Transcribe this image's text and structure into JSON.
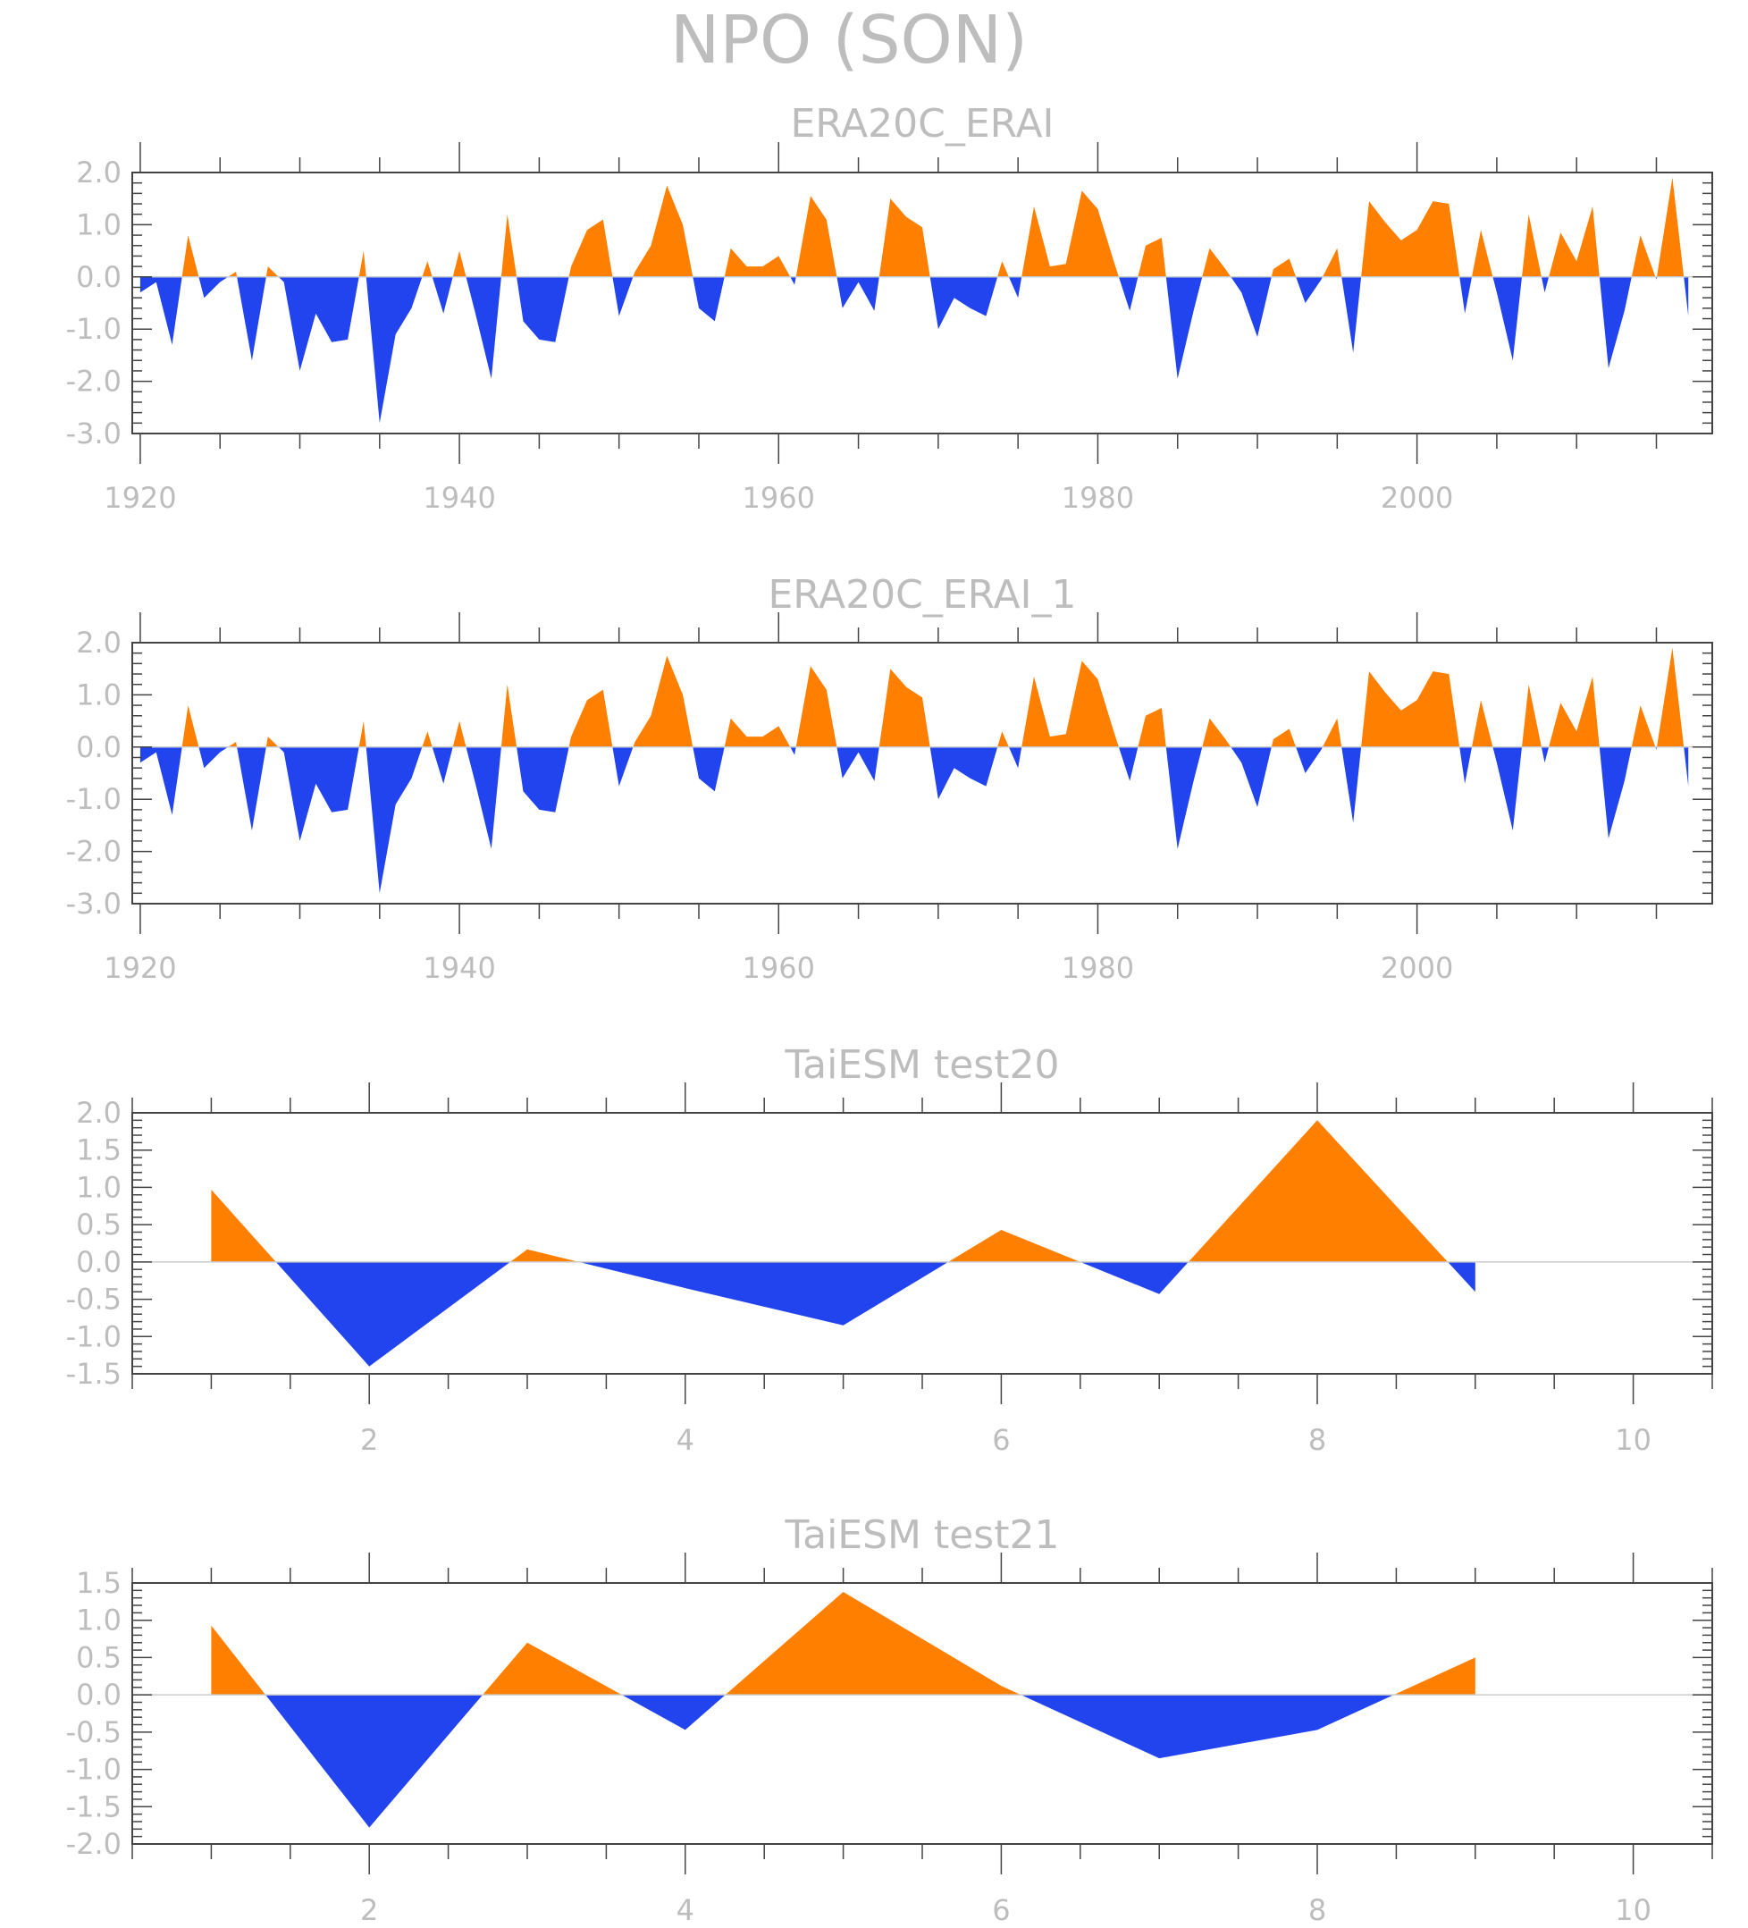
{
  "figure": {
    "title": "NPO (SON)"
  },
  "colors": {
    "positive": "#ff8000",
    "negative": "#2244ee",
    "axis": "#444444",
    "text": "#bdbdbd",
    "zero_line": "#cccccc"
  },
  "chart_data": [
    {
      "type": "area",
      "title": "ERA20C_ERAI",
      "xlim": [
        1919.5,
        2018.5
      ],
      "ylim": [
        -3.0,
        2.0
      ],
      "x_ticks": [
        1920,
        1940,
        1960,
        1980,
        2000
      ],
      "x_tick_labels": [
        "1920",
        "1940",
        "1960",
        "1980",
        "2000"
      ],
      "y_ticks": [
        2.0,
        1.0,
        0.0,
        -1.0,
        -2.0,
        -3.0
      ],
      "y_tick_labels": [
        "2.0",
        "1.0",
        "0.0",
        "-1.0",
        "-2.0",
        "-3.0"
      ],
      "x_start": 1920,
      "values": [
        -0.3,
        -0.1,
        -1.3,
        0.8,
        -0.4,
        -0.1,
        0.1,
        -1.6,
        0.2,
        -0.1,
        -1.8,
        -0.7,
        -1.25,
        -1.2,
        0.5,
        -2.8,
        -1.1,
        -0.6,
        0.3,
        -0.7,
        0.5,
        -0.7,
        -1.95,
        1.2,
        -0.85,
        -1.2,
        -1.25,
        0.2,
        0.9,
        1.1,
        -0.75,
        0.1,
        0.6,
        1.75,
        1.0,
        -0.6,
        -0.85,
        0.55,
        0.2,
        0.2,
        0.4,
        -0.15,
        1.55,
        1.1,
        -0.6,
        -0.1,
        -0.65,
        1.5,
        1.15,
        0.95,
        -1.0,
        -0.4,
        -0.6,
        -0.75,
        0.3,
        -0.4,
        1.35,
        0.2,
        0.25,
        1.65,
        1.3,
        0.3,
        -0.65,
        0.6,
        0.75,
        -1.95,
        -0.65,
        0.55,
        0.15,
        -0.3,
        -1.15,
        0.15,
        0.35,
        -0.5,
        -0.05,
        0.55,
        -1.45,
        1.45,
        1.05,
        0.7,
        0.9,
        1.45,
        1.4,
        -0.7,
        0.9,
        -0.3,
        -1.6,
        1.2,
        -0.3,
        0.85,
        0.3,
        1.35,
        -1.75,
        -0.65,
        0.8,
        -0.05,
        1.9,
        -0.75
      ]
    },
    {
      "type": "area",
      "title": "ERA20C_ERAI_1",
      "xlim": [
        1919.5,
        2018.5
      ],
      "ylim": [
        -3.0,
        2.0
      ],
      "x_ticks": [
        1920,
        1940,
        1960,
        1980,
        2000
      ],
      "x_tick_labels": [
        "1920",
        "1940",
        "1960",
        "1980",
        "2000"
      ],
      "y_ticks": [
        2.0,
        1.0,
        0.0,
        -1.0,
        -2.0,
        -3.0
      ],
      "y_tick_labels": [
        "2.0",
        "1.0",
        "0.0",
        "-1.0",
        "-2.0",
        "-3.0"
      ],
      "x_start": 1920,
      "values": [
        -0.3,
        -0.1,
        -1.3,
        0.8,
        -0.4,
        -0.1,
        0.1,
        -1.6,
        0.2,
        -0.1,
        -1.8,
        -0.7,
        -1.25,
        -1.2,
        0.5,
        -2.8,
        -1.1,
        -0.6,
        0.3,
        -0.7,
        0.5,
        -0.7,
        -1.95,
        1.2,
        -0.85,
        -1.2,
        -1.25,
        0.2,
        0.9,
        1.1,
        -0.75,
        0.1,
        0.6,
        1.75,
        1.0,
        -0.6,
        -0.85,
        0.55,
        0.2,
        0.2,
        0.4,
        -0.15,
        1.55,
        1.1,
        -0.6,
        -0.1,
        -0.65,
        1.5,
        1.15,
        0.95,
        -1.0,
        -0.4,
        -0.6,
        -0.75,
        0.3,
        -0.4,
        1.35,
        0.2,
        0.25,
        1.65,
        1.3,
        0.3,
        -0.65,
        0.6,
        0.75,
        -1.95,
        -0.65,
        0.55,
        0.15,
        -0.3,
        -1.15,
        0.15,
        0.35,
        -0.5,
        -0.05,
        0.55,
        -1.45,
        1.45,
        1.05,
        0.7,
        0.9,
        1.45,
        1.4,
        -0.7,
        0.9,
        -0.3,
        -1.6,
        1.2,
        -0.3,
        0.85,
        0.3,
        1.35,
        -1.75,
        -0.65,
        0.8,
        -0.05,
        1.9,
        -0.75
      ]
    },
    {
      "type": "area",
      "title": "TaiESM test20",
      "xlim": [
        0.5,
        10.5
      ],
      "ylim": [
        -1.5,
        2.0
      ],
      "x_ticks": [
        2,
        4,
        6,
        8,
        10
      ],
      "x_tick_labels": [
        "2",
        "4",
        "6",
        "8",
        "10"
      ],
      "y_ticks": [
        2.0,
        1.5,
        1.0,
        0.5,
        0.0,
        -0.5,
        -1.0,
        -1.5
      ],
      "y_tick_labels": [
        "2.0",
        "1.5",
        "1.0",
        "0.5",
        "0.0",
        "-0.5",
        "-1.0",
        "-1.5"
      ],
      "x": [
        1,
        2,
        3,
        4,
        5,
        6,
        7,
        8,
        9
      ],
      "values": [
        0.97,
        -1.4,
        0.17,
        -0.35,
        -0.85,
        0.43,
        -0.43,
        1.9,
        -0.4
      ]
    },
    {
      "type": "area",
      "title": "TaiESM test21",
      "xlim": [
        0.5,
        10.5
      ],
      "ylim": [
        -2.0,
        1.5
      ],
      "x_ticks": [
        2,
        4,
        6,
        8,
        10
      ],
      "x_tick_labels": [
        "2",
        "4",
        "6",
        "8",
        "10"
      ],
      "y_ticks": [
        1.5,
        1.0,
        0.5,
        0.0,
        -0.5,
        -1.0,
        -1.5,
        -2.0
      ],
      "y_tick_labels": [
        "1.5",
        "1.0",
        "0.5",
        "0.0",
        "-0.5",
        "-1.0",
        "-1.5",
        "-2.0"
      ],
      "x": [
        1,
        2,
        3,
        4,
        5,
        6,
        7,
        8,
        9
      ],
      "values": [
        0.93,
        -1.78,
        0.7,
        -0.47,
        1.38,
        0.12,
        -0.85,
        -0.47,
        0.5
      ]
    }
  ]
}
